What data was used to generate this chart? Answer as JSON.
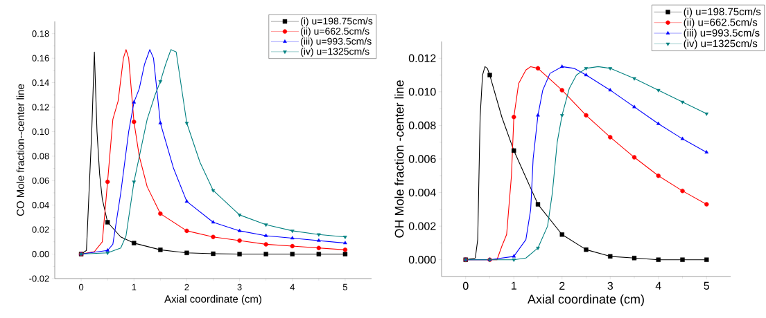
{
  "chart_data": [
    {
      "type": "line",
      "xlabel": "Axial coordinate (cm)",
      "ylabel": "CO Mole fraction--center line",
      "xlim": [
        -0.5,
        5.5
      ],
      "ylim": [
        -0.02,
        0.19
      ],
      "xticks": [
        0,
        1,
        2,
        3,
        4,
        5
      ],
      "yticks": [
        {
          "value": -0.02,
          "label": "-0.02"
        },
        {
          "value": 0,
          "label": "0.00"
        },
        {
          "value": 0.02,
          "label": "0.02"
        },
        {
          "value": 0.04,
          "label": "0.04"
        },
        {
          "value": 0.06,
          "label": "0.06"
        },
        {
          "value": 0.08,
          "label": "0.08"
        },
        {
          "value": 0.1,
          "label": "0.10"
        },
        {
          "value": 0.12,
          "label": "0.12"
        },
        {
          "value": 0.14,
          "label": "0.14"
        },
        {
          "value": 0.16,
          "label": "0.16"
        },
        {
          "value": 0.18,
          "label": "0.18"
        }
      ],
      "legend": "top right",
      "series": [
        {
          "type": "line",
          "color": "#000000",
          "marker": "none",
          "x": [
            0,
            0.1,
            0.2,
            0.25,
            0.3,
            0.35,
            0.4,
            0.5,
            0.75,
            1,
            1.5,
            2,
            2.5,
            3,
            3.5,
            4,
            4.5,
            5
          ],
          "values": [
            0,
            0.003,
            0.1,
            0.165,
            0.1,
            0.065,
            0.045,
            0.026,
            0.014,
            0.009,
            0.0035,
            0.001,
            0.0003,
            0,
            0,
            0,
            0,
            0
          ]
        },
        {
          "type": "line",
          "color": "#ff0000",
          "marker": "none",
          "x": [
            0,
            0.25,
            0.4,
            0.5,
            0.6,
            0.7,
            0.8,
            0.85,
            0.9,
            1,
            1.1,
            1.25,
            1.5,
            2,
            2.5,
            3,
            3.5,
            4,
            4.5,
            5
          ],
          "values": [
            0,
            0.002,
            0.01,
            0.059,
            0.11,
            0.125,
            0.16,
            0.167,
            0.16,
            0.108,
            0.08,
            0.055,
            0.033,
            0.019,
            0.014,
            0.011,
            0.008,
            0.0065,
            0.005,
            0.0035
          ]
        },
        {
          "type": "line",
          "color": "#0000ff",
          "marker": "none",
          "x": [
            0,
            0.5,
            0.6,
            0.75,
            0.9,
            1,
            1.1,
            1.2,
            1.3,
            1.37,
            1.5,
            1.75,
            2,
            2.5,
            3,
            3.5,
            4,
            4.5,
            5
          ],
          "values": [
            0,
            0.003,
            0.008,
            0.05,
            0.1,
            0.124,
            0.135,
            0.155,
            0.167,
            0.16,
            0.107,
            0.07,
            0.043,
            0.026,
            0.019,
            0.015,
            0.013,
            0.011,
            0.009
          ]
        },
        {
          "type": "line",
          "color": "#008080",
          "marker": "none",
          "x": [
            0,
            0.5,
            0.75,
            0.85,
            1,
            1.25,
            1.4,
            1.5,
            1.6,
            1.7,
            1.8,
            2,
            2.25,
            2.5,
            3,
            3.5,
            4,
            4.5,
            5
          ],
          "values": [
            0,
            0.001,
            0.005,
            0.015,
            0.059,
            0.11,
            0.13,
            0.141,
            0.155,
            0.167,
            0.165,
            0.107,
            0.075,
            0.052,
            0.032,
            0.024,
            0.019,
            0.016,
            0.014
          ]
        },
        {
          "type": "scatter",
          "name": "(i) u=198.75cm/s",
          "color": "#000000",
          "marker": "square",
          "x": [
            0,
            0.5,
            1,
            1.5,
            2,
            2.5,
            3,
            3.5,
            4,
            4.5,
            5
          ],
          "values": [
            0,
            0.026,
            0.009,
            0.0035,
            0.001,
            0.0003,
            0,
            0,
            0,
            0,
            0
          ]
        },
        {
          "type": "scatter",
          "name": "(ii) u=662.5cm/s",
          "color": "#ff0000",
          "marker": "circle",
          "x": [
            0,
            0.5,
            1,
            1.5,
            2,
            2.5,
            3,
            3.5,
            4,
            4.5,
            5
          ],
          "values": [
            0,
            0.059,
            0.108,
            0.033,
            0.019,
            0.014,
            0.011,
            0.008,
            0.0065,
            0.005,
            0.0035
          ]
        },
        {
          "type": "scatter",
          "name": "(iii) u=993.5cm/s",
          "color": "#0000ff",
          "marker": "triangle",
          "x": [
            0,
            0.5,
            1,
            1.5,
            2,
            2.5,
            3,
            3.5,
            4,
            4.5,
            5
          ],
          "values": [
            0,
            0.003,
            0.124,
            0.107,
            0.043,
            0.026,
            0.019,
            0.015,
            0.013,
            0.011,
            0.009
          ]
        },
        {
          "type": "scatter",
          "name": "(iv) u=1325cm/s",
          "color": "#008080",
          "marker": "triangle-down",
          "x": [
            0,
            0.5,
            1,
            1.5,
            2,
            2.5,
            3,
            3.5,
            4,
            4.5,
            5
          ],
          "values": [
            0,
            0.001,
            0.059,
            0.141,
            0.107,
            0.052,
            0.032,
            0.024,
            0.019,
            0.016,
            0.014
          ]
        }
      ]
    },
    {
      "type": "line",
      "xlabel": "Axial coordinate (cm)",
      "ylabel": "OH Mole fraction -center line",
      "xlim": [
        -0.5,
        5.5
      ],
      "ylim": [
        -0.001,
        0.013
      ],
      "xticks": [
        0,
        1,
        2,
        3,
        4,
        5
      ],
      "yticks": [
        {
          "value": 0,
          "label": "0.000"
        },
        {
          "value": 0.002,
          "label": "0.002"
        },
        {
          "value": 0.004,
          "label": "0.004"
        },
        {
          "value": 0.006,
          "label": "0.006"
        },
        {
          "value": 0.008,
          "label": "0.008"
        },
        {
          "value": 0.01,
          "label": "0.010"
        },
        {
          "value": 0.012,
          "label": "0.012"
        }
      ],
      "legend": "top right",
      "series": [
        {
          "type": "line",
          "color": "#000000",
          "marker": "none",
          "x": [
            0,
            0.2,
            0.25,
            0.3,
            0.35,
            0.4,
            0.45,
            0.5,
            0.75,
            1,
            1.5,
            2,
            2.5,
            3,
            3.5,
            4,
            4.5,
            5
          ],
          "values": [
            0,
            0.0001,
            0.0012,
            0.0085,
            0.011,
            0.0115,
            0.0114,
            0.011,
            0.0085,
            0.0065,
            0.0033,
            0.0015,
            0.0006,
            0.0002,
            0.0001,
            0,
            0,
            0
          ]
        },
        {
          "type": "line",
          "color": "#ff0000",
          "marker": "none",
          "x": [
            0,
            0.5,
            0.65,
            0.75,
            0.85,
            0.95,
            1,
            1.1,
            1.25,
            1.35,
            1.5,
            2,
            2.5,
            3,
            3.5,
            4,
            4.5,
            5
          ],
          "values": [
            0,
            0,
            0,
            0.0008,
            0.0015,
            0.005,
            0.0085,
            0.0105,
            0.0113,
            0.0115,
            0.0114,
            0.0101,
            0.0086,
            0.0073,
            0.0061,
            0.005,
            0.0041,
            0.0033
          ]
        },
        {
          "type": "line",
          "color": "#0000ff",
          "marker": "none",
          "x": [
            0,
            0.5,
            1,
            1.1,
            1.25,
            1.35,
            1.4,
            1.5,
            1.6,
            1.75,
            2,
            2.25,
            2.5,
            3,
            3.5,
            4,
            4.5,
            5
          ],
          "values": [
            0,
            0,
            0.0002,
            0.0006,
            0.0012,
            0.003,
            0.006,
            0.0086,
            0.0101,
            0.0111,
            0.0115,
            0.0114,
            0.011,
            0.0101,
            0.0091,
            0.0081,
            0.0072,
            0.0064
          ]
        },
        {
          "type": "line",
          "color": "#008080",
          "marker": "none",
          "x": [
            0,
            0.5,
            1,
            1.25,
            1.5,
            1.7,
            1.8,
            1.9,
            2,
            2.15,
            2.3,
            2.5,
            2.75,
            3,
            3.5,
            4,
            4.5,
            5
          ],
          "values": [
            0,
            0,
            0,
            0.0001,
            0.0007,
            0.002,
            0.004,
            0.007,
            0.0086,
            0.0102,
            0.011,
            0.0114,
            0.0115,
            0.0114,
            0.0108,
            0.0101,
            0.0094,
            0.0087
          ]
        },
        {
          "type": "scatter",
          "name": "(i) u=198.75cm/s",
          "color": "#000000",
          "marker": "square",
          "x": [
            0,
            0.5,
            1,
            1.5,
            2,
            2.5,
            3,
            3.5,
            4,
            4.5,
            5
          ],
          "values": [
            0,
            0.011,
            0.0065,
            0.0033,
            0.0015,
            0.0006,
            0.0002,
            0.0001,
            0,
            0,
            0
          ]
        },
        {
          "type": "scatter",
          "name": "(ii) u=662.5cm/s",
          "color": "#ff0000",
          "marker": "circle",
          "x": [
            0,
            0.5,
            1,
            1.5,
            2,
            2.5,
            3,
            3.5,
            4,
            4.5,
            5
          ],
          "values": [
            0,
            0,
            0.0085,
            0.0114,
            0.0101,
            0.0086,
            0.0073,
            0.0061,
            0.005,
            0.0041,
            0.0033
          ]
        },
        {
          "type": "scatter",
          "name": "(iii) u=993.5cm/s",
          "color": "#0000ff",
          "marker": "triangle",
          "x": [
            0,
            0.5,
            1,
            1.5,
            2,
            2.5,
            3,
            3.5,
            4,
            4.5,
            5
          ],
          "values": [
            0,
            0,
            0.0002,
            0.0086,
            0.0115,
            0.011,
            0.0101,
            0.0091,
            0.0081,
            0.0072,
            0.0064
          ]
        },
        {
          "type": "scatter",
          "name": "(iv) u=1325cm/s",
          "color": "#008080",
          "marker": "triangle-down",
          "x": [
            0,
            0.5,
            1,
            1.5,
            2,
            2.5,
            3,
            3.5,
            4,
            4.5,
            5
          ],
          "values": [
            0,
            0,
            0,
            0.0007,
            0.0086,
            0.0114,
            0.0114,
            0.0108,
            0.0101,
            0.0094,
            0.0087
          ]
        }
      ]
    }
  ]
}
